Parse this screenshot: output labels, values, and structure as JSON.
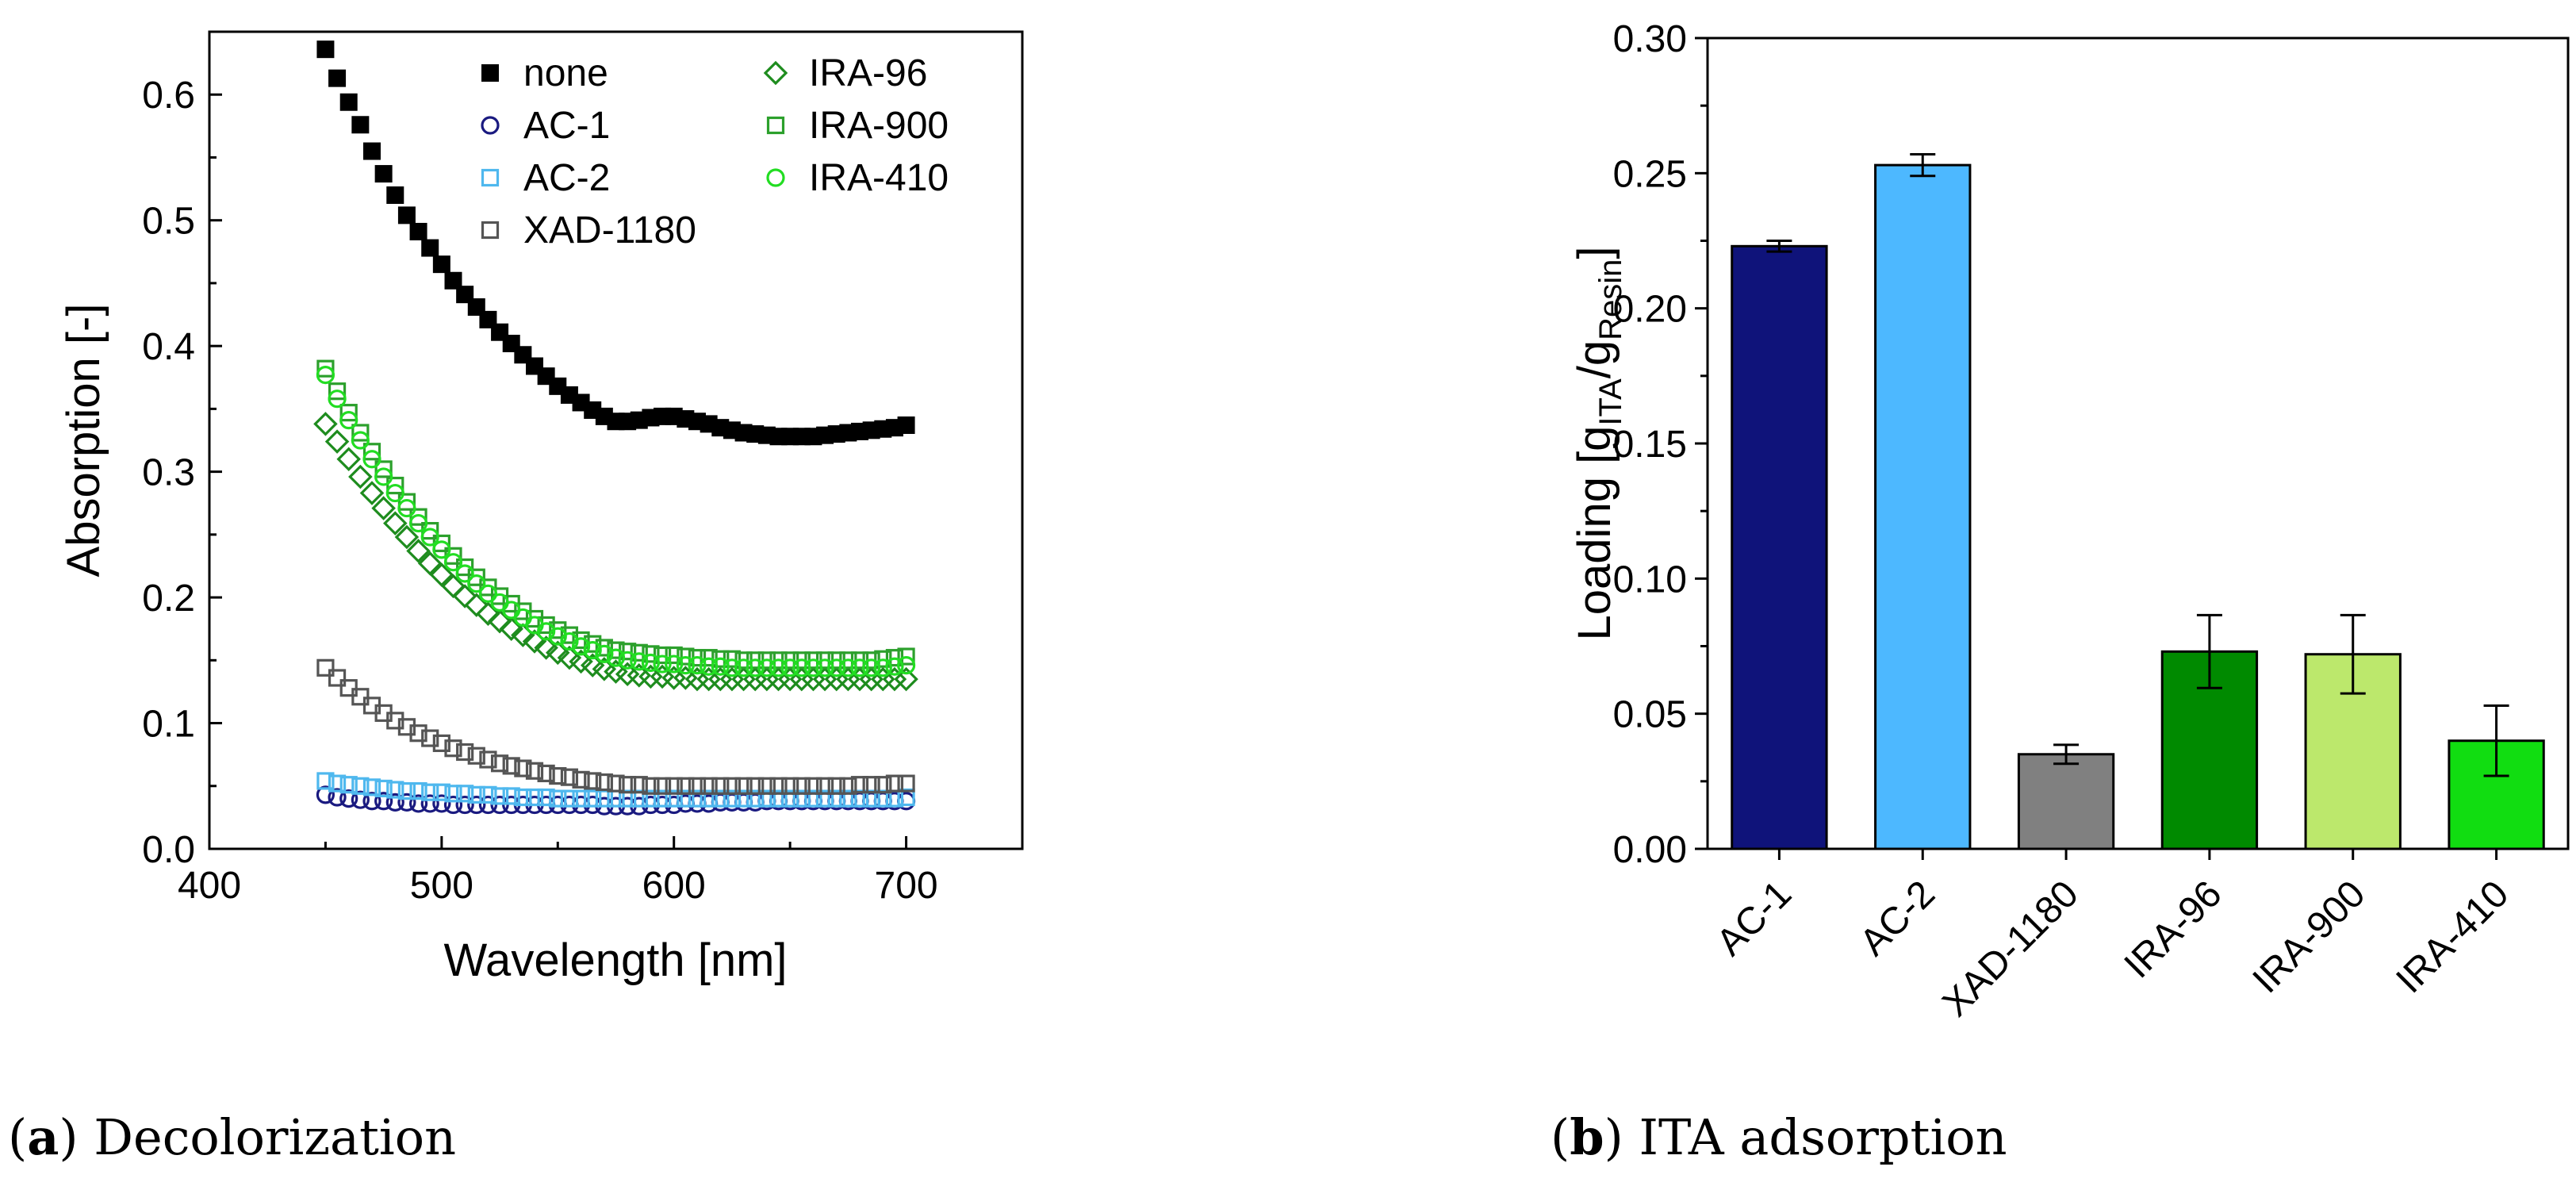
{
  "chart_data": [
    {
      "type": "scatter",
      "xlabel": "Wavelength [nm]",
      "ylabel": "Absorption [-]",
      "xlim": [
        400,
        750
      ],
      "ylim": [
        0.0,
        0.65
      ],
      "xticks": [
        "400",
        "500",
        "600",
        "700"
      ],
      "yticks": [
        "0.0",
        "0.1",
        "0.2",
        "0.3",
        "0.4",
        "0.5",
        "0.6"
      ],
      "x": [
        450,
        455,
        460,
        465,
        470,
        475,
        480,
        485,
        490,
        495,
        500,
        505,
        510,
        515,
        520,
        525,
        530,
        535,
        540,
        545,
        550,
        555,
        560,
        565,
        570,
        575,
        580,
        585,
        590,
        595,
        600,
        605,
        610,
        615,
        620,
        625,
        630,
        635,
        640,
        645,
        650,
        655,
        660,
        665,
        670,
        675,
        680,
        685,
        690,
        695,
        700
      ],
      "series": [
        {
          "name": "none",
          "color": "#000000",
          "marker": "square-filled",
          "values": [
            0.636,
            0.613,
            0.594,
            0.576,
            0.555,
            0.537,
            0.52,
            0.504,
            0.491,
            0.478,
            0.465,
            0.452,
            0.441,
            0.431,
            0.421,
            0.411,
            0.402,
            0.393,
            0.384,
            0.376,
            0.368,
            0.361,
            0.355,
            0.349,
            0.344,
            0.34,
            0.34,
            0.341,
            0.343,
            0.344,
            0.344,
            0.342,
            0.34,
            0.338,
            0.335,
            0.333,
            0.331,
            0.33,
            0.329,
            0.328,
            0.328,
            0.328,
            0.328,
            0.329,
            0.33,
            0.331,
            0.332,
            0.333,
            0.334,
            0.335,
            0.337
          ]
        },
        {
          "name": "AC-1",
          "color": "#1a1a80",
          "marker": "circle",
          "values": [
            0.043,
            0.041,
            0.04,
            0.039,
            0.038,
            0.038,
            0.037,
            0.037,
            0.036,
            0.036,
            0.036,
            0.035,
            0.035,
            0.035,
            0.035,
            0.035,
            0.035,
            0.035,
            0.035,
            0.035,
            0.035,
            0.035,
            0.035,
            0.035,
            0.034,
            0.034,
            0.034,
            0.034,
            0.035,
            0.035,
            0.035,
            0.036,
            0.036,
            0.036,
            0.037,
            0.037,
            0.037,
            0.037,
            0.038,
            0.038,
            0.038,
            0.038,
            0.038,
            0.038,
            0.038,
            0.038,
            0.038,
            0.038,
            0.038,
            0.038,
            0.038
          ]
        },
        {
          "name": "AC-2",
          "color": "#4fb8ee",
          "marker": "square",
          "values": [
            0.054,
            0.052,
            0.051,
            0.05,
            0.049,
            0.048,
            0.047,
            0.046,
            0.046,
            0.045,
            0.045,
            0.044,
            0.044,
            0.043,
            0.043,
            0.042,
            0.042,
            0.041,
            0.041,
            0.041,
            0.04,
            0.04,
            0.04,
            0.04,
            0.04,
            0.04,
            0.04,
            0.04,
            0.04,
            0.04,
            0.04,
            0.04,
            0.04,
            0.04,
            0.04,
            0.04,
            0.04,
            0.04,
            0.04,
            0.04,
            0.04,
            0.04,
            0.04,
            0.04,
            0.04,
            0.04,
            0.04,
            0.04,
            0.04,
            0.04,
            0.041
          ]
        },
        {
          "name": "XAD-1180",
          "color": "#555555",
          "marker": "square",
          "values": [
            0.144,
            0.136,
            0.128,
            0.121,
            0.114,
            0.108,
            0.102,
            0.097,
            0.092,
            0.088,
            0.084,
            0.08,
            0.077,
            0.074,
            0.071,
            0.068,
            0.066,
            0.064,
            0.062,
            0.06,
            0.058,
            0.057,
            0.055,
            0.054,
            0.053,
            0.052,
            0.051,
            0.051,
            0.05,
            0.05,
            0.05,
            0.05,
            0.05,
            0.05,
            0.05,
            0.05,
            0.05,
            0.05,
            0.05,
            0.05,
            0.05,
            0.05,
            0.05,
            0.05,
            0.05,
            0.05,
            0.051,
            0.051,
            0.051,
            0.052,
            0.052
          ]
        },
        {
          "name": "IRA-96",
          "color": "#1e8c1e",
          "marker": "diamond",
          "values": [
            0.338,
            0.324,
            0.31,
            0.296,
            0.283,
            0.271,
            0.259,
            0.248,
            0.237,
            0.227,
            0.218,
            0.209,
            0.201,
            0.194,
            0.187,
            0.181,
            0.175,
            0.17,
            0.165,
            0.16,
            0.156,
            0.152,
            0.149,
            0.146,
            0.143,
            0.141,
            0.139,
            0.138,
            0.137,
            0.137,
            0.136,
            0.136,
            0.135,
            0.135,
            0.135,
            0.135,
            0.135,
            0.135,
            0.135,
            0.135,
            0.135,
            0.135,
            0.135,
            0.135,
            0.135,
            0.135,
            0.135,
            0.135,
            0.135,
            0.135,
            0.135
          ]
        },
        {
          "name": "IRA-900",
          "color": "#2ca02c",
          "marker": "square",
          "values": [
            0.382,
            0.364,
            0.347,
            0.331,
            0.316,
            0.302,
            0.289,
            0.276,
            0.264,
            0.253,
            0.243,
            0.233,
            0.224,
            0.216,
            0.208,
            0.201,
            0.195,
            0.189,
            0.183,
            0.178,
            0.174,
            0.17,
            0.166,
            0.163,
            0.16,
            0.158,
            0.157,
            0.156,
            0.155,
            0.154,
            0.154,
            0.153,
            0.152,
            0.152,
            0.151,
            0.151,
            0.15,
            0.15,
            0.15,
            0.15,
            0.15,
            0.15,
            0.15,
            0.15,
            0.15,
            0.15,
            0.15,
            0.15,
            0.151,
            0.152,
            0.153
          ]
        },
        {
          "name": "IRA-410",
          "color": "#22dd22",
          "marker": "circle",
          "values": [
            0.377,
            0.358,
            0.341,
            0.325,
            0.31,
            0.296,
            0.283,
            0.271,
            0.259,
            0.248,
            0.238,
            0.228,
            0.219,
            0.211,
            0.203,
            0.196,
            0.19,
            0.184,
            0.178,
            0.173,
            0.169,
            0.165,
            0.161,
            0.158,
            0.155,
            0.152,
            0.15,
            0.149,
            0.148,
            0.147,
            0.147,
            0.146,
            0.146,
            0.145,
            0.145,
            0.144,
            0.144,
            0.144,
            0.144,
            0.144,
            0.144,
            0.144,
            0.144,
            0.144,
            0.144,
            0.144,
            0.144,
            0.144,
            0.144,
            0.145,
            0.146
          ]
        }
      ],
      "legend": [
        "none",
        "AC-1",
        "AC-2",
        "XAD-1180",
        "IRA-96",
        "IRA-900",
        "IRA-410"
      ],
      "legend_position": "top-right"
    },
    {
      "type": "bar",
      "ylabel_prefix": "Loading [g",
      "ylabel_sub1": "ITA",
      "ylabel_mid": "/g",
      "ylabel_sub2": "Resin",
      "ylabel_suffix": "]",
      "ylim": [
        0.0,
        0.3
      ],
      "yticks": [
        "0.00",
        "0.05",
        "0.10",
        "0.15",
        "0.20",
        "0.25",
        "0.30"
      ],
      "categories": [
        "AC-1",
        "AC-2",
        "XAD-1180",
        "IRA-96",
        "IRA-900",
        "IRA-410"
      ],
      "values": [
        0.223,
        0.253,
        0.035,
        0.073,
        0.072,
        0.04
      ],
      "errors": [
        0.002,
        0.004,
        0.0035,
        0.0135,
        0.0145,
        0.013
      ],
      "colors": [
        "#0f137a",
        "#4db8ff",
        "#808080",
        "#008a00",
        "#bce86c",
        "#11dd11"
      ]
    }
  ],
  "captions": {
    "a_label": "a",
    "a_text": " Decolorization",
    "b_label": "b",
    "b_text": " ITA adsorption"
  }
}
